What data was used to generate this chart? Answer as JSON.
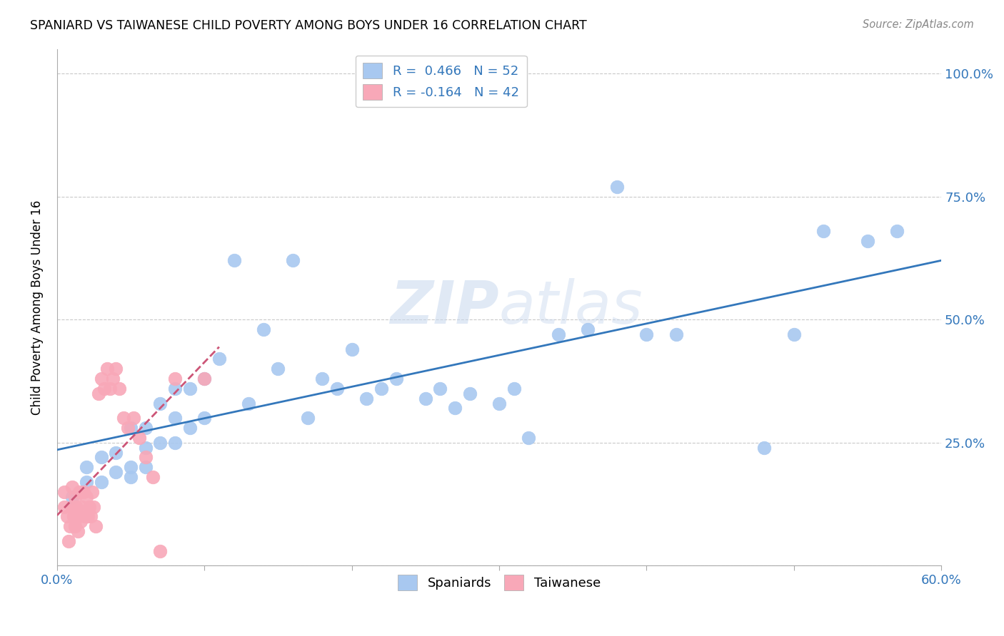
{
  "title": "SPANIARD VS TAIWANESE CHILD POVERTY AMONG BOYS UNDER 16 CORRELATION CHART",
  "source": "Source: ZipAtlas.com",
  "ylabel": "Child Poverty Among Boys Under 16",
  "spaniard_color": "#a8c8f0",
  "taiwanese_color": "#f8a8b8",
  "spaniard_border_color": "#88aadd",
  "taiwanese_border_color": "#dd8899",
  "spaniard_line_color": "#3377bb",
  "taiwanese_line_color": "#cc5577",
  "spaniard_R": 0.466,
  "spaniard_N": 52,
  "taiwanese_R": -0.164,
  "taiwanese_N": 42,
  "xlim": [
    0.0,
    0.6
  ],
  "ylim": [
    0.0,
    1.05
  ],
  "spaniard_x": [
    0.01,
    0.02,
    0.02,
    0.03,
    0.03,
    0.04,
    0.04,
    0.05,
    0.05,
    0.05,
    0.06,
    0.06,
    0.06,
    0.07,
    0.07,
    0.08,
    0.08,
    0.08,
    0.09,
    0.09,
    0.1,
    0.1,
    0.11,
    0.12,
    0.13,
    0.14,
    0.15,
    0.16,
    0.17,
    0.18,
    0.19,
    0.2,
    0.21,
    0.22,
    0.23,
    0.25,
    0.26,
    0.27,
    0.28,
    0.3,
    0.31,
    0.32,
    0.34,
    0.36,
    0.38,
    0.4,
    0.42,
    0.48,
    0.5,
    0.52,
    0.55,
    0.57
  ],
  "spaniard_y": [
    0.14,
    0.17,
    0.2,
    0.17,
    0.22,
    0.19,
    0.23,
    0.18,
    0.2,
    0.28,
    0.2,
    0.24,
    0.28,
    0.25,
    0.33,
    0.25,
    0.3,
    0.36,
    0.28,
    0.36,
    0.3,
    0.38,
    0.42,
    0.62,
    0.33,
    0.48,
    0.4,
    0.62,
    0.3,
    0.38,
    0.36,
    0.44,
    0.34,
    0.36,
    0.38,
    0.34,
    0.36,
    0.32,
    0.35,
    0.33,
    0.36,
    0.26,
    0.47,
    0.48,
    0.77,
    0.47,
    0.47,
    0.24,
    0.47,
    0.68,
    0.66,
    0.68
  ],
  "taiwanese_x": [
    0.005,
    0.005,
    0.007,
    0.008,
    0.009,
    0.01,
    0.01,
    0.011,
    0.012,
    0.012,
    0.013,
    0.014,
    0.015,
    0.015,
    0.016,
    0.017,
    0.018,
    0.019,
    0.02,
    0.021,
    0.022,
    0.023,
    0.024,
    0.025,
    0.026,
    0.028,
    0.03,
    0.032,
    0.034,
    0.036,
    0.038,
    0.04,
    0.042,
    0.045,
    0.048,
    0.052,
    0.056,
    0.06,
    0.065,
    0.07,
    0.08,
    0.1
  ],
  "taiwanese_y": [
    0.12,
    0.15,
    0.1,
    0.05,
    0.08,
    0.12,
    0.16,
    0.1,
    0.14,
    0.08,
    0.12,
    0.07,
    0.1,
    0.15,
    0.09,
    0.12,
    0.15,
    0.1,
    0.14,
    0.1,
    0.12,
    0.1,
    0.15,
    0.12,
    0.08,
    0.35,
    0.38,
    0.36,
    0.4,
    0.36,
    0.38,
    0.4,
    0.36,
    0.3,
    0.28,
    0.3,
    0.26,
    0.22,
    0.18,
    0.03,
    0.38,
    0.38
  ]
}
